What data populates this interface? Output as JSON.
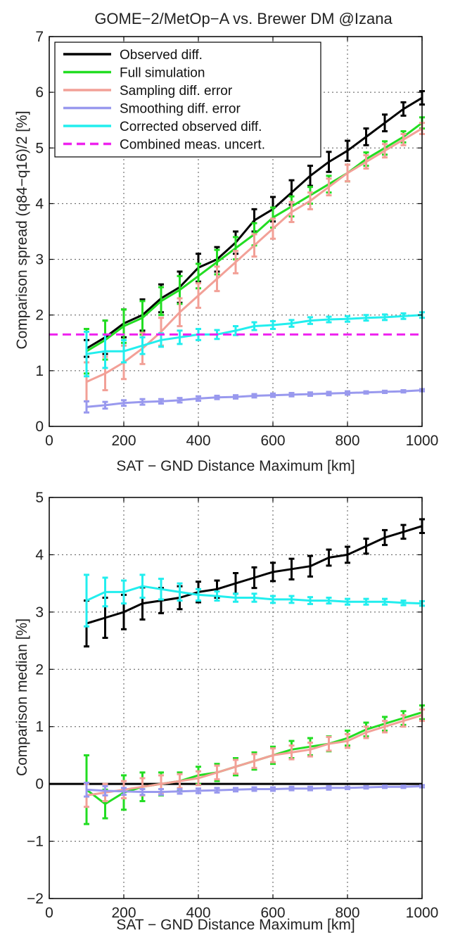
{
  "figure_title": "GOME−2/MetOp−A vs. Brewer DM @Izana",
  "colors": {
    "observed": "#000000",
    "full_sim": "#22dd22",
    "sampling": "#f2a097",
    "smoothing": "#9999ee",
    "corrected": "#22eeee",
    "combined": "#ee22ee"
  },
  "chart_data": [
    {
      "type": "line",
      "title": "GOME−2/MetOp−A vs. Brewer DM @Izana",
      "xlabel": "SAT − GND Distance Maximum [km]",
      "ylabel": "Comparison spread (q84−q16)/2 [%]",
      "xlim": [
        0,
        1000
      ],
      "ylim": [
        0,
        7
      ],
      "xticks": [
        "0",
        "200",
        "400",
        "600",
        "800",
        "1000"
      ],
      "yticks": [
        "0",
        "1",
        "2",
        "3",
        "4",
        "5",
        "6",
        "7"
      ],
      "grid": true,
      "legend_position": "top-left",
      "x": [
        100,
        150,
        200,
        250,
        300,
        350,
        400,
        450,
        500,
        550,
        600,
        650,
        700,
        750,
        800,
        850,
        900,
        950,
        1000
      ],
      "series": [
        {
          "name": "Observed diff.",
          "color_key": "observed",
          "style": "solid",
          "values": [
            1.4,
            1.6,
            1.85,
            2.0,
            2.3,
            2.5,
            2.85,
            3.0,
            3.3,
            3.7,
            3.9,
            4.2,
            4.5,
            4.75,
            4.95,
            5.2,
            5.45,
            5.7,
            5.9
          ],
          "errors": [
            0.15,
            0.3,
            0.25,
            0.28,
            0.25,
            0.28,
            0.25,
            0.22,
            0.2,
            0.2,
            0.22,
            0.22,
            0.18,
            0.18,
            0.18,
            0.15,
            0.15,
            0.12,
            0.12
          ]
        },
        {
          "name": "Full simulation",
          "color_key": "full_sim",
          "style": "solid",
          "values": [
            1.35,
            1.55,
            1.8,
            1.95,
            2.25,
            2.45,
            2.7,
            2.95,
            3.2,
            3.45,
            3.75,
            3.95,
            4.15,
            4.35,
            4.55,
            4.8,
            5.0,
            5.2,
            5.45
          ],
          "errors": [
            0.4,
            0.35,
            0.3,
            0.3,
            0.25,
            0.25,
            0.22,
            0.22,
            0.2,
            0.2,
            0.18,
            0.18,
            0.15,
            0.15,
            0.15,
            0.12,
            0.12,
            0.1,
            0.1
          ]
        },
        {
          "name": "Sampling diff. error",
          "color_key": "sampling",
          "style": "solid",
          "values": [
            0.8,
            0.95,
            1.15,
            1.4,
            1.7,
            2.05,
            2.35,
            2.65,
            2.95,
            3.25,
            3.55,
            3.85,
            4.05,
            4.3,
            4.55,
            4.75,
            4.95,
            5.15,
            5.35
          ],
          "errors": [
            0.35,
            0.3,
            0.3,
            0.28,
            0.25,
            0.25,
            0.22,
            0.22,
            0.2,
            0.2,
            0.18,
            0.18,
            0.15,
            0.15,
            0.15,
            0.12,
            0.12,
            0.1,
            0.1
          ]
        },
        {
          "name": "Smoothing diff. error",
          "color_key": "smoothing",
          "style": "solid",
          "values": [
            0.35,
            0.38,
            0.42,
            0.44,
            0.45,
            0.47,
            0.5,
            0.52,
            0.53,
            0.55,
            0.56,
            0.57,
            0.58,
            0.59,
            0.6,
            0.61,
            0.62,
            0.63,
            0.65
          ],
          "errors": [
            0.1,
            0.06,
            0.05,
            0.05,
            0.04,
            0.04,
            0.04,
            0.03,
            0.03,
            0.03,
            0.03,
            0.03,
            0.03,
            0.03,
            0.03,
            0.02,
            0.02,
            0.02,
            0.02
          ]
        },
        {
          "name": "Corrected observed diff.",
          "color_key": "corrected",
          "style": "solid",
          "values": [
            1.3,
            1.35,
            1.35,
            1.45,
            1.55,
            1.6,
            1.65,
            1.65,
            1.72,
            1.8,
            1.82,
            1.85,
            1.9,
            1.92,
            1.93,
            1.95,
            1.96,
            1.98,
            2.0
          ],
          "errors": [
            0.4,
            0.3,
            0.2,
            0.15,
            0.12,
            0.12,
            0.1,
            0.08,
            0.08,
            0.07,
            0.07,
            0.06,
            0.06,
            0.05,
            0.05,
            0.05,
            0.05,
            0.05,
            0.05
          ]
        },
        {
          "name": "Combined meas. uncert.",
          "color_key": "combined",
          "style": "dashed",
          "constant": 1.65
        }
      ]
    },
    {
      "type": "line",
      "title": "",
      "xlabel": "SAT − GND Distance Maximum [km]",
      "ylabel": "Comparison median [%]",
      "xlim": [
        0,
        1000
      ],
      "ylim": [
        -2,
        5
      ],
      "xticks": [
        "0",
        "200",
        "400",
        "600",
        "800",
        "1000"
      ],
      "yticks": [
        "−2",
        "−1",
        "0",
        "1",
        "2",
        "3",
        "4",
        "5"
      ],
      "grid": true,
      "zero_line": true,
      "x": [
        100,
        150,
        200,
        250,
        300,
        350,
        400,
        450,
        500,
        550,
        600,
        650,
        700,
        750,
        800,
        850,
        900,
        950,
        1000
      ],
      "series": [
        {
          "color_key": "observed",
          "style": "solid",
          "values": [
            2.8,
            2.9,
            3.0,
            3.15,
            3.2,
            3.25,
            3.35,
            3.4,
            3.5,
            3.6,
            3.7,
            3.75,
            3.8,
            3.95,
            4.0,
            4.15,
            4.3,
            4.4,
            4.5
          ],
          "errors": [
            0.4,
            0.35,
            0.3,
            0.28,
            0.22,
            0.2,
            0.18,
            0.15,
            0.18,
            0.18,
            0.16,
            0.18,
            0.18,
            0.14,
            0.14,
            0.13,
            0.13,
            0.12,
            0.12
          ]
        },
        {
          "color_key": "full_sim",
          "style": "solid",
          "values": [
            -0.1,
            -0.35,
            -0.15,
            -0.05,
            0.0,
            0.05,
            0.15,
            0.2,
            0.3,
            0.4,
            0.5,
            0.6,
            0.65,
            0.7,
            0.8,
            0.95,
            1.05,
            1.15,
            1.25
          ],
          "errors": [
            0.6,
            0.25,
            0.3,
            0.25,
            0.2,
            0.15,
            0.15,
            0.15,
            0.15,
            0.15,
            0.15,
            0.15,
            0.15,
            0.13,
            0.13,
            0.12,
            0.12,
            0.12,
            0.12
          ]
        },
        {
          "color_key": "sampling",
          "style": "solid",
          "values": [
            -0.2,
            -0.15,
            -0.1,
            -0.05,
            0.0,
            0.05,
            0.1,
            0.2,
            0.3,
            0.4,
            0.5,
            0.55,
            0.6,
            0.7,
            0.75,
            0.9,
            1.0,
            1.1,
            1.2
          ],
          "errors": [
            0.2,
            0.15,
            0.15,
            0.15,
            0.15,
            0.12,
            0.12,
            0.12,
            0.12,
            0.12,
            0.12,
            0.12,
            0.12,
            0.12,
            0.12,
            0.1,
            0.1,
            0.1,
            0.1
          ]
        },
        {
          "color_key": "smoothing",
          "style": "solid",
          "values": [
            -0.1,
            -0.12,
            -0.13,
            -0.14,
            -0.14,
            -0.13,
            -0.12,
            -0.11,
            -0.1,
            -0.09,
            -0.09,
            -0.08,
            -0.08,
            -0.07,
            -0.07,
            -0.06,
            -0.05,
            -0.05,
            -0.04
          ],
          "errors": [
            0.12,
            0.08,
            0.06,
            0.05,
            0.05,
            0.04,
            0.04,
            0.04,
            0.03,
            0.03,
            0.03,
            0.03,
            0.03,
            0.03,
            0.02,
            0.02,
            0.02,
            0.02,
            0.02
          ]
        },
        {
          "color_key": "corrected",
          "style": "solid",
          "values": [
            3.2,
            3.35,
            3.35,
            3.45,
            3.4,
            3.35,
            3.3,
            3.28,
            3.25,
            3.25,
            3.22,
            3.22,
            3.2,
            3.2,
            3.18,
            3.18,
            3.18,
            3.16,
            3.15
          ],
          "errors": [
            0.45,
            0.25,
            0.2,
            0.2,
            0.18,
            0.15,
            0.1,
            0.08,
            0.07,
            0.07,
            0.06,
            0.06,
            0.06,
            0.05,
            0.05,
            0.05,
            0.05,
            0.04,
            0.04
          ]
        }
      ]
    }
  ]
}
